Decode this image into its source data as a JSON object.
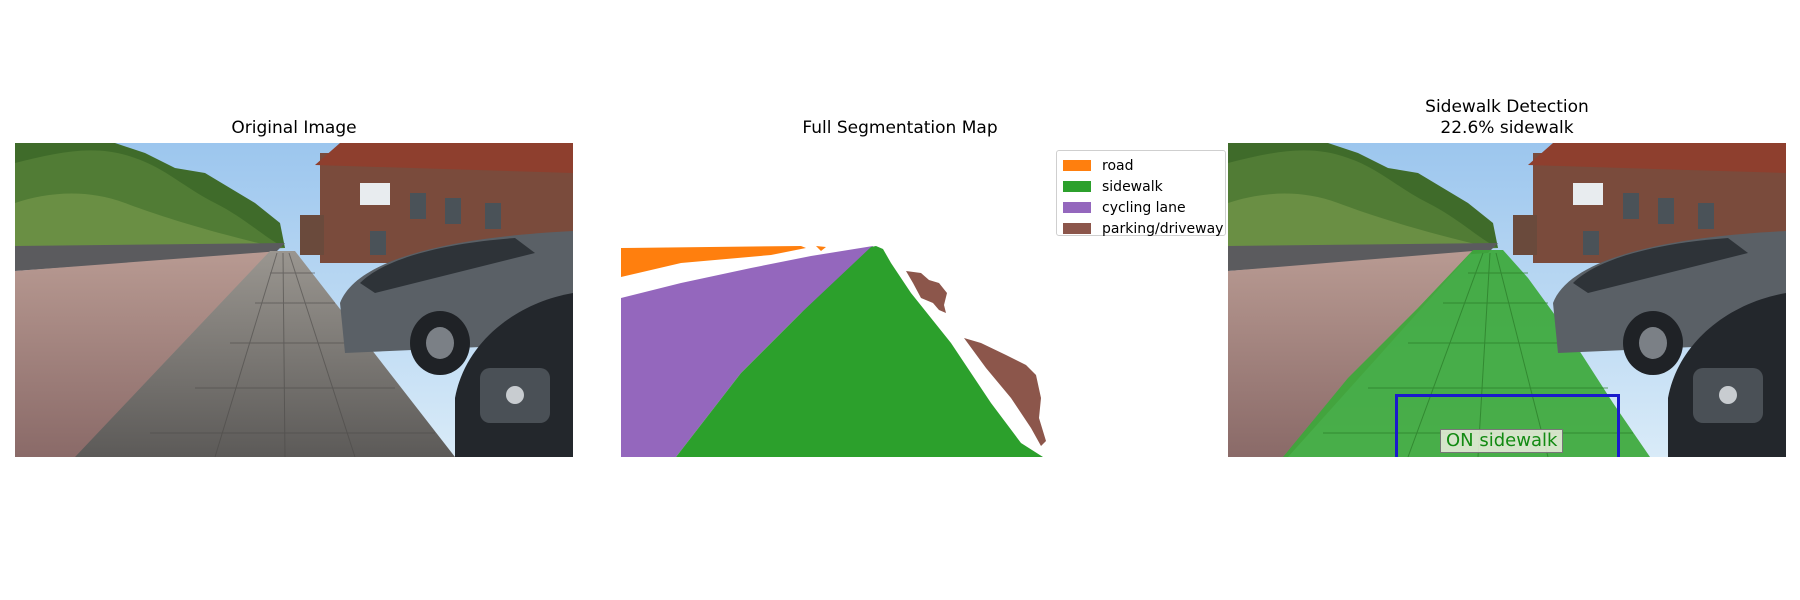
{
  "panels": {
    "original": {
      "title": "Original Image"
    },
    "segmentation": {
      "title": "Full Segmentation Map"
    },
    "detection": {
      "title_line1": "Sidewalk Detection",
      "title_line2": "22.6% sidewalk",
      "sidewalk_percent": 22.6
    }
  },
  "legend": [
    {
      "label": "road",
      "color": "#ff7f0e"
    },
    {
      "label": "sidewalk",
      "color": "#2ca02c"
    },
    {
      "label": "cycling lane",
      "color": "#9467bd"
    },
    {
      "label": "parking/driveway",
      "color": "#8c564b"
    }
  ],
  "detection": {
    "status_label": "ON sidewalk",
    "status_color": "#128a12",
    "box_color": "#1a1acc",
    "overlay_color": "#2ca02c"
  }
}
